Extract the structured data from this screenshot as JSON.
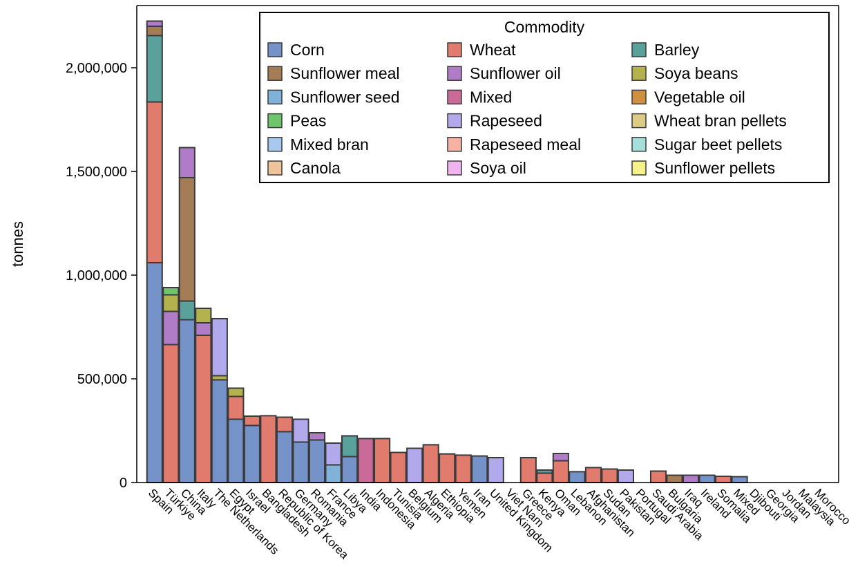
{
  "chart_data": {
    "type": "bar",
    "stacked": true,
    "title": "",
    "xlabel": "",
    "ylabel": "tonnes",
    "ylim": [
      0,
      2300000
    ],
    "yticks": [
      0,
      500000,
      1000000,
      1500000,
      2000000
    ],
    "ytick_labels": [
      "0",
      "500,000",
      "1,000,000",
      "1,500,000",
      "2,000,000"
    ],
    "grid": false,
    "legend_title": "Commodity",
    "legend_position": "top-right",
    "categories": [
      "Spain",
      "Türkiye",
      "China",
      "Italy",
      "The Netherlands",
      "Egypt",
      "Israel",
      "Bangladesh",
      "Republic of Korea",
      "Germany",
      "Romania",
      "France",
      "Libya",
      "India",
      "Indonesia",
      "Tunisia",
      "Belgium",
      "Algeria",
      "Ethiopia",
      "Yemen",
      "Iran",
      "United Kingdom",
      "Viet Nam",
      "Greece",
      "Kenya",
      "Oman",
      "Lebanon",
      "Afghanistan",
      "Sudan",
      "Pakistan",
      "Portugal",
      "Saudi Arabia",
      "Bulgaria",
      "Iraq",
      "Ireland",
      "Somalia",
      "Mixed",
      "Djibouti",
      "Georgia",
      "Jordan",
      "Malaysia",
      "Morocco"
    ],
    "series": [
      {
        "name": "Corn",
        "color": "#7592c9",
        "values": [
          1060000,
          0,
          785000,
          0,
          495000,
          305000,
          275000,
          0,
          245000,
          195000,
          205000,
          0,
          125000,
          0,
          0,
          0,
          0,
          0,
          0,
          0,
          128000,
          0,
          0,
          0,
          0,
          0,
          52000,
          0,
          0,
          0,
          0,
          0,
          0,
          0,
          35000,
          0,
          28000,
          0,
          0,
          0,
          0,
          0
        ]
      },
      {
        "name": "Wheat",
        "color": "#e07b6e",
        "values": [
          775000,
          665000,
          0,
          710000,
          0,
          110000,
          45000,
          322000,
          70000,
          0,
          0,
          0,
          0,
          0,
          212000,
          145000,
          0,
          182000,
          138000,
          132000,
          0,
          0,
          0,
          120000,
          45000,
          105000,
          0,
          72000,
          65000,
          0,
          0,
          55000,
          0,
          0,
          0,
          30000,
          0,
          0,
          0,
          0,
          0,
          0
        ]
      },
      {
        "name": "Barley",
        "color": "#5aa19b",
        "values": [
          320000,
          0,
          90000,
          0,
          0,
          0,
          0,
          0,
          0,
          0,
          0,
          0,
          100000,
          0,
          0,
          0,
          0,
          0,
          0,
          0,
          0,
          0,
          0,
          0,
          15000,
          0,
          0,
          0,
          0,
          0,
          0,
          0,
          0,
          0,
          0,
          0,
          0,
          0,
          0,
          0,
          0,
          0
        ]
      },
      {
        "name": "Sunflower meal",
        "color": "#a47c55",
        "values": [
          45000,
          0,
          595000,
          0,
          0,
          0,
          0,
          0,
          0,
          0,
          0,
          0,
          0,
          0,
          0,
          0,
          0,
          0,
          0,
          0,
          0,
          0,
          0,
          0,
          0,
          0,
          0,
          0,
          0,
          0,
          0,
          0,
          35000,
          0,
          0,
          0,
          0,
          0,
          0,
          0,
          0,
          0
        ]
      },
      {
        "name": "Sunflower oil",
        "color": "#b07cc8",
        "values": [
          25000,
          160000,
          145000,
          60000,
          0,
          0,
          0,
          0,
          0,
          0,
          35000,
          0,
          0,
          0,
          0,
          0,
          0,
          0,
          0,
          0,
          0,
          0,
          0,
          0,
          0,
          35000,
          0,
          0,
          0,
          0,
          0,
          0,
          0,
          35000,
          0,
          0,
          0,
          0,
          0,
          0,
          0,
          0
        ]
      },
      {
        "name": "Soya beans",
        "color": "#b3b24f",
        "values": [
          0,
          80000,
          0,
          70000,
          20000,
          40000,
          0,
          0,
          0,
          0,
          0,
          0,
          0,
          0,
          0,
          0,
          0,
          0,
          0,
          0,
          0,
          0,
          0,
          0,
          0,
          0,
          0,
          0,
          0,
          0,
          0,
          0,
          0,
          0,
          0,
          0,
          0,
          0,
          0,
          0,
          0,
          0
        ]
      },
      {
        "name": "Sunflower seed",
        "color": "#7fb1d9",
        "values": [
          0,
          0,
          0,
          0,
          0,
          0,
          0,
          0,
          0,
          0,
          0,
          85000,
          0,
          0,
          0,
          0,
          0,
          0,
          0,
          0,
          0,
          0,
          0,
          0,
          0,
          0,
          0,
          0,
          0,
          0,
          0,
          0,
          0,
          0,
          0,
          0,
          0,
          0,
          0,
          0,
          0,
          0
        ]
      },
      {
        "name": "Mixed",
        "color": "#c96a98",
        "values": [
          0,
          0,
          0,
          0,
          0,
          0,
          0,
          0,
          0,
          0,
          0,
          0,
          0,
          212000,
          0,
          0,
          0,
          0,
          0,
          0,
          0,
          0,
          0,
          0,
          0,
          0,
          0,
          0,
          0,
          0,
          0,
          0,
          0,
          0,
          0,
          0,
          0,
          0,
          0,
          0,
          0,
          0
        ]
      },
      {
        "name": "Vegetable oil",
        "color": "#cf9040",
        "values": [
          0,
          0,
          0,
          0,
          0,
          0,
          0,
          0,
          0,
          0,
          0,
          0,
          0,
          0,
          0,
          0,
          0,
          0,
          0,
          0,
          0,
          0,
          0,
          0,
          0,
          0,
          0,
          0,
          0,
          0,
          0,
          0,
          0,
          0,
          0,
          0,
          0,
          0,
          0,
          0,
          0,
          0
        ]
      },
      {
        "name": "Peas",
        "color": "#70c46a",
        "values": [
          0,
          35000,
          0,
          0,
          0,
          0,
          0,
          0,
          0,
          0,
          0,
          0,
          0,
          0,
          0,
          0,
          0,
          0,
          0,
          0,
          0,
          0,
          0,
          0,
          0,
          0,
          0,
          0,
          0,
          0,
          0,
          0,
          0,
          0,
          0,
          0,
          0,
          0,
          0,
          0,
          0,
          0
        ]
      },
      {
        "name": "Rapeseed",
        "color": "#b2a9ec",
        "values": [
          0,
          0,
          0,
          0,
          275000,
          0,
          0,
          0,
          0,
          110000,
          0,
          105000,
          0,
          0,
          0,
          0,
          165000,
          0,
          0,
          0,
          0,
          120000,
          0,
          0,
          0,
          0,
          0,
          0,
          0,
          60000,
          0,
          0,
          0,
          0,
          0,
          0,
          0,
          0,
          0,
          0,
          0,
          0
        ]
      },
      {
        "name": "Wheat bran pellets",
        "color": "#dccb82",
        "values": [
          0,
          0,
          0,
          0,
          0,
          0,
          0,
          0,
          0,
          0,
          0,
          0,
          0,
          0,
          0,
          0,
          0,
          0,
          0,
          0,
          0,
          0,
          0,
          0,
          0,
          0,
          0,
          0,
          0,
          0,
          0,
          0,
          0,
          0,
          0,
          0,
          0,
          0,
          0,
          0,
          0,
          0
        ]
      },
      {
        "name": "Mixed bran",
        "color": "#a9c8ee",
        "values": [
          0,
          0,
          0,
          0,
          0,
          0,
          0,
          0,
          0,
          0,
          0,
          0,
          0,
          0,
          0,
          0,
          0,
          0,
          0,
          0,
          0,
          0,
          0,
          0,
          0,
          0,
          0,
          0,
          0,
          0,
          0,
          0,
          0,
          0,
          0,
          0,
          0,
          0,
          0,
          0,
          0,
          0
        ]
      },
      {
        "name": "Rapeseed meal",
        "color": "#f6b3a3",
        "values": [
          0,
          0,
          0,
          0,
          0,
          0,
          0,
          0,
          0,
          0,
          0,
          0,
          0,
          0,
          0,
          0,
          0,
          0,
          0,
          0,
          0,
          0,
          0,
          0,
          0,
          0,
          0,
          0,
          0,
          0,
          0,
          0,
          0,
          0,
          0,
          0,
          0,
          0,
          0,
          0,
          0,
          0
        ]
      },
      {
        "name": "Sugar beet pellets",
        "color": "#a6dfd9",
        "values": [
          0,
          0,
          0,
          0,
          0,
          0,
          0,
          0,
          0,
          0,
          0,
          0,
          0,
          0,
          0,
          0,
          0,
          0,
          0,
          0,
          0,
          0,
          0,
          0,
          0,
          0,
          0,
          0,
          0,
          0,
          0,
          0,
          0,
          0,
          0,
          0,
          0,
          0,
          0,
          0,
          0,
          0
        ]
      },
      {
        "name": "Canola",
        "color": "#efc49a",
        "values": [
          0,
          0,
          0,
          0,
          0,
          0,
          0,
          0,
          0,
          0,
          0,
          0,
          0,
          0,
          0,
          0,
          0,
          0,
          0,
          0,
          0,
          0,
          0,
          0,
          0,
          0,
          0,
          0,
          0,
          0,
          0,
          0,
          0,
          0,
          0,
          0,
          0,
          0,
          0,
          0,
          0,
          0
        ]
      },
      {
        "name": "Soya oil",
        "color": "#f0b5f0",
        "values": [
          0,
          0,
          0,
          0,
          0,
          0,
          0,
          0,
          0,
          0,
          0,
          0,
          0,
          0,
          0,
          0,
          0,
          0,
          0,
          0,
          0,
          0,
          0,
          0,
          0,
          0,
          0,
          0,
          0,
          0,
          0,
          0,
          0,
          0,
          0,
          0,
          0,
          0,
          0,
          0,
          0,
          0
        ]
      },
      {
        "name": "Sunflower pellets",
        "color": "#f5f28a",
        "values": [
          0,
          0,
          0,
          0,
          0,
          0,
          0,
          0,
          0,
          0,
          0,
          0,
          0,
          0,
          0,
          0,
          0,
          0,
          0,
          0,
          0,
          0,
          0,
          0,
          0,
          0,
          0,
          0,
          0,
          0,
          0,
          0,
          0,
          0,
          0,
          0,
          0,
          0,
          0,
          0,
          0,
          0
        ]
      }
    ]
  }
}
